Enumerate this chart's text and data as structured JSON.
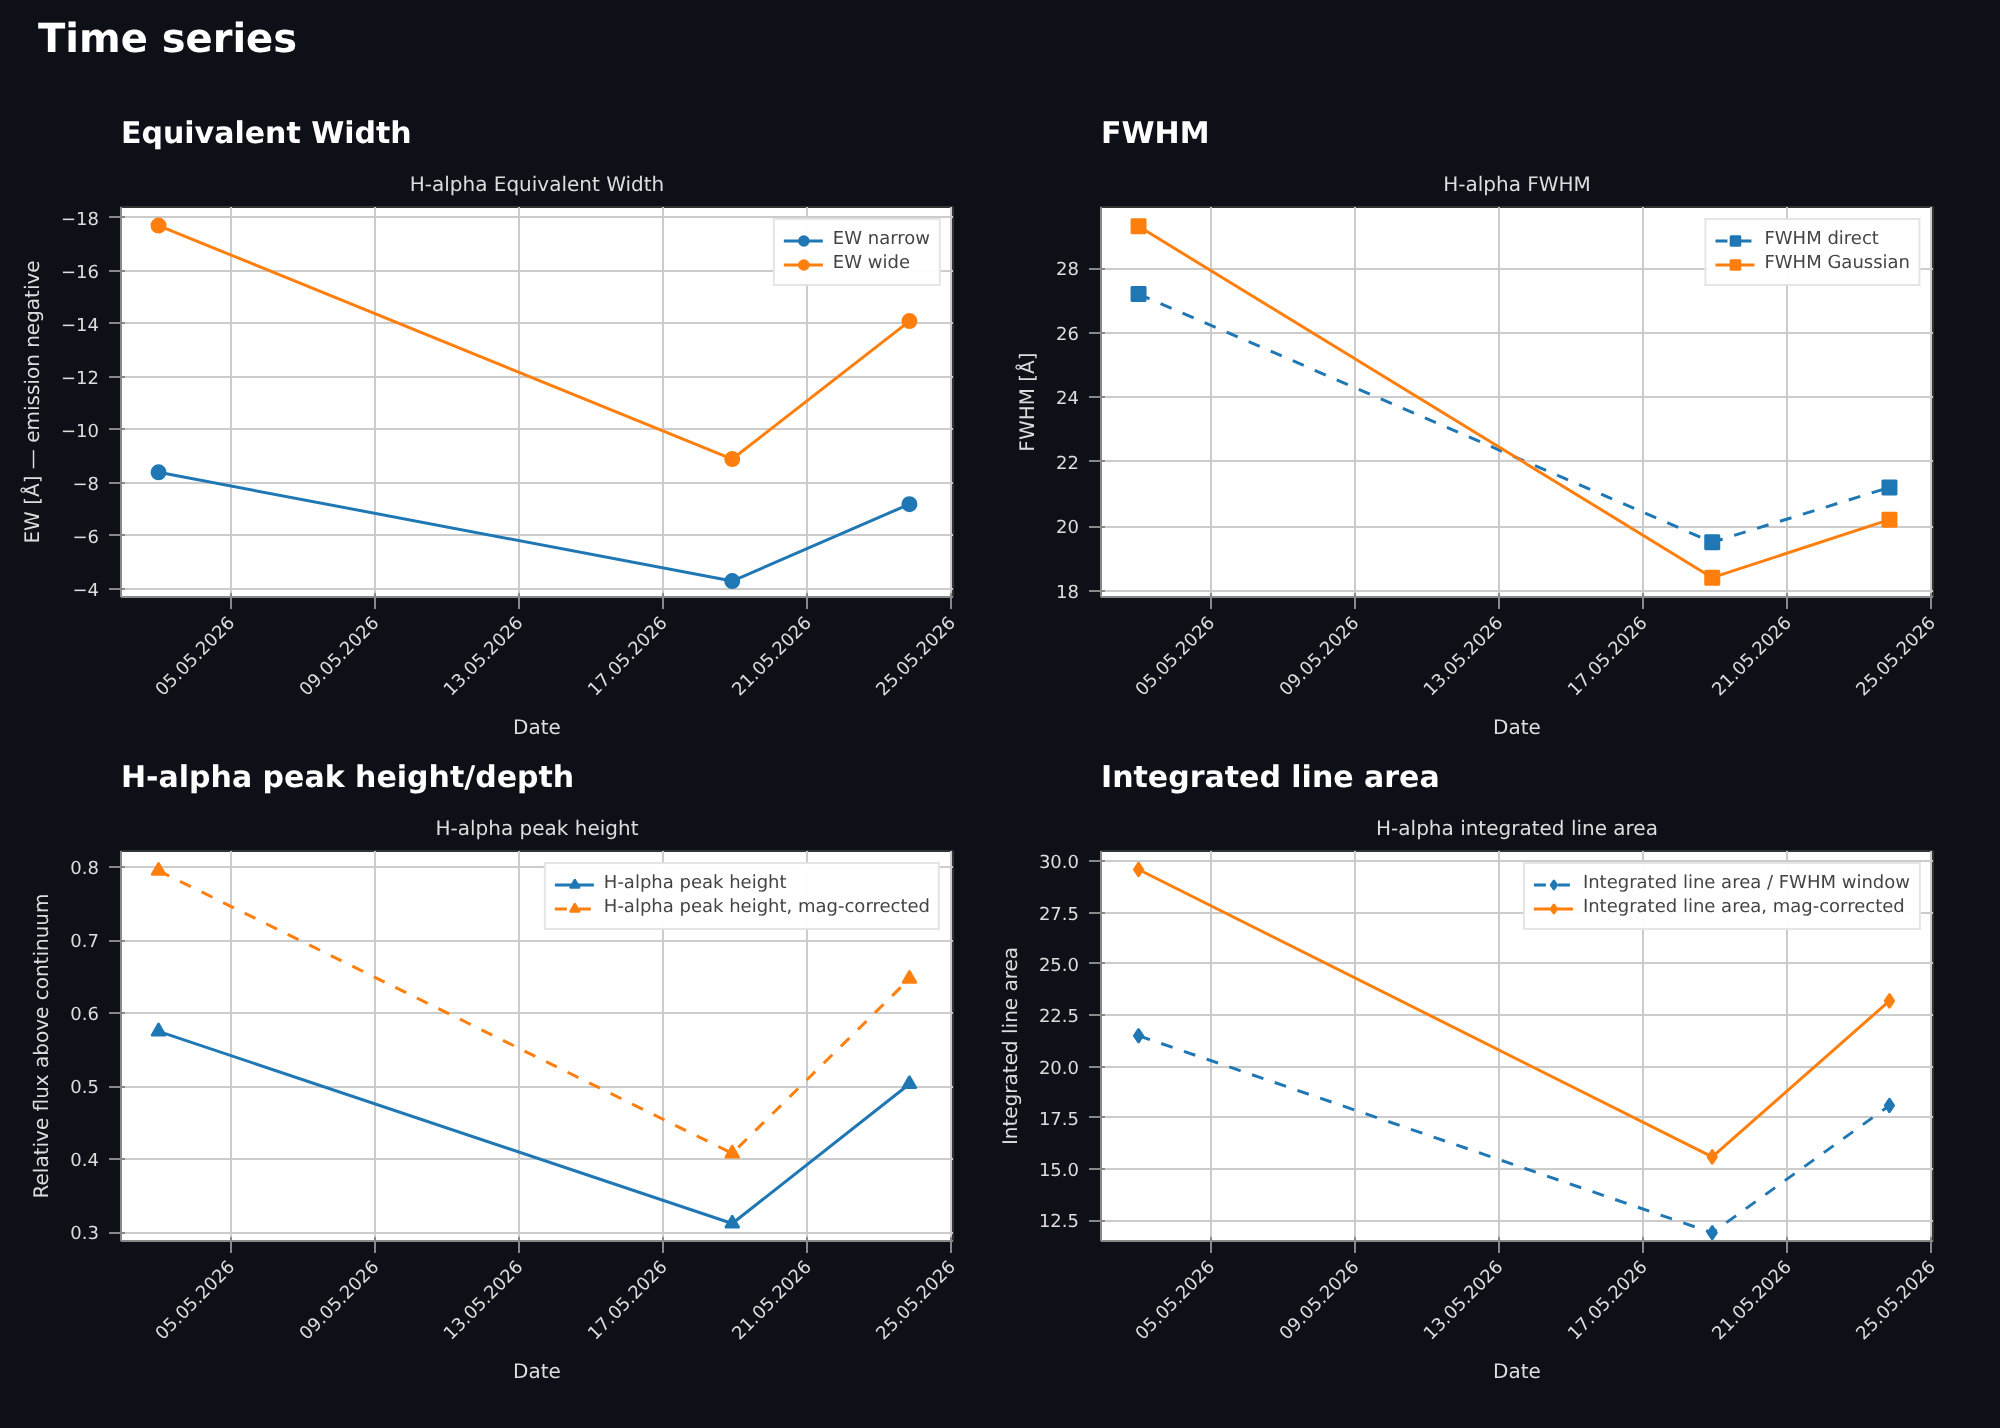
{
  "chart_data": [
    {
      "type": "other",
      "title": "Time series"
    },
    {
      "type": "line",
      "title": "Equivalent Width",
      "subtitle": "H-alpha Equivalent Width",
      "xlabel": "Date",
      "ylabel": "EW [Å] — emission negative",
      "marker": "circle",
      "grid": true,
      "legend": "top right",
      "x": [
        "2026-05-03T00:00",
        "2026-05-18T22:00",
        "2026-05-23T20:00"
      ],
      "series": [
        {
          "name": "EW narrow",
          "color": "#1f77b4",
          "line_style": "solid",
          "values": [
            -8.4,
            -4.3,
            -7.2
          ]
        },
        {
          "name": "EW wide",
          "color": "#ff7f0e",
          "line_style": "solid",
          "values": [
            -17.7,
            -8.9,
            -14.1
          ]
        }
      ],
      "xlim": [
        "2026-05-01T23:00",
        "2026-05-25T01:00"
      ],
      "ylim": [
        -3.7,
        -18.4
      ],
      "xticks": [
        {
          "value": "2026-05-05",
          "label": "05.05.2026"
        },
        {
          "value": "2026-05-09",
          "label": "09.05.2026"
        },
        {
          "value": "2026-05-13",
          "label": "13.05.2026"
        },
        {
          "value": "2026-05-17",
          "label": "17.05.2026"
        },
        {
          "value": "2026-05-21",
          "label": "21.05.2026"
        },
        {
          "value": "2026-05-25",
          "label": "25.05.2026"
        }
      ],
      "yticks": [
        {
          "value": -18,
          "label": "−18"
        },
        {
          "value": -16,
          "label": "−16"
        },
        {
          "value": -14,
          "label": "−14"
        },
        {
          "value": -12,
          "label": "−12"
        },
        {
          "value": -10,
          "label": "−10"
        },
        {
          "value": -8,
          "label": "−8"
        },
        {
          "value": -6,
          "label": "−6"
        },
        {
          "value": -4,
          "label": "−4"
        }
      ]
    },
    {
      "type": "line",
      "title": "FWHM",
      "subtitle": "H-alpha FWHM",
      "xlabel": "Date",
      "ylabel": "FWHM [Å]",
      "marker": "square",
      "grid": true,
      "legend": "top right",
      "x": [
        "2026-05-03T00:00",
        "2026-05-18T22:00",
        "2026-05-23T20:00"
      ],
      "series": [
        {
          "name": "FWHM direct",
          "color": "#1f77b4",
          "line_style": "dashed",
          "values": [
            27.2,
            19.5,
            21.2
          ]
        },
        {
          "name": "FWHM Gaussian",
          "color": "#ff7f0e",
          "line_style": "solid",
          "values": [
            29.3,
            18.4,
            20.2
          ]
        }
      ],
      "xlim": [
        "2026-05-01T23:00",
        "2026-05-25T01:00"
      ],
      "ylim": [
        17.8,
        29.9
      ],
      "xticks": [
        {
          "value": "2026-05-05",
          "label": "05.05.2026"
        },
        {
          "value": "2026-05-09",
          "label": "09.05.2026"
        },
        {
          "value": "2026-05-13",
          "label": "13.05.2026"
        },
        {
          "value": "2026-05-17",
          "label": "17.05.2026"
        },
        {
          "value": "2026-05-21",
          "label": "21.05.2026"
        },
        {
          "value": "2026-05-25",
          "label": "25.05.2026"
        }
      ],
      "yticks": [
        18,
        20,
        22,
        24,
        26,
        28
      ]
    },
    {
      "type": "line",
      "title": "H-alpha peak height/depth",
      "subtitle": "H-alpha peak height",
      "xlabel": "Date",
      "ylabel": "Relative flux above continuum",
      "marker": "triangle",
      "grid": true,
      "legend": "top right",
      "x": [
        "2026-05-03T00:00",
        "2026-05-18T22:00",
        "2026-05-23T20:00"
      ],
      "series": [
        {
          "name": "H-alpha peak height",
          "color": "#1f77b4",
          "line_style": "solid",
          "values": [
            0.575,
            0.312,
            0.503
          ]
        },
        {
          "name": "H-alpha peak height, mag-corrected",
          "color": "#ff7f0e",
          "line_style": "dashed",
          "values": [
            0.795,
            0.408,
            0.647
          ]
        }
      ],
      "xlim": [
        "2026-05-01T23:00",
        "2026-05-25T01:00"
      ],
      "ylim": [
        0.288,
        0.822
      ],
      "xticks": [
        {
          "value": "2026-05-05",
          "label": "05.05.2026"
        },
        {
          "value": "2026-05-09",
          "label": "09.05.2026"
        },
        {
          "value": "2026-05-13",
          "label": "13.05.2026"
        },
        {
          "value": "2026-05-17",
          "label": "17.05.2026"
        },
        {
          "value": "2026-05-21",
          "label": "21.05.2026"
        },
        {
          "value": "2026-05-25",
          "label": "25.05.2026"
        }
      ],
      "yticks": [
        0.3,
        0.4,
        0.5,
        0.6,
        0.7,
        0.8
      ]
    },
    {
      "type": "line",
      "title": "Integrated line area",
      "subtitle": "H-alpha integrated line area",
      "xlabel": "Date",
      "ylabel": "Integrated line area",
      "marker": "diamond",
      "grid": true,
      "legend": "top right",
      "x": [
        "2026-05-03T00:00",
        "2026-05-18T22:00",
        "2026-05-23T20:00"
      ],
      "series": [
        {
          "name": "Integrated line area / FWHM window",
          "color": "#1f77b4",
          "line_style": "dashed",
          "values": [
            21.5,
            11.9,
            18.1
          ]
        },
        {
          "name": "Integrated line area, mag-corrected",
          "color": "#ff7f0e",
          "line_style": "solid",
          "values": [
            29.6,
            15.6,
            23.2
          ]
        }
      ],
      "xlim": [
        "2026-05-01T23:00",
        "2026-05-25T01:00"
      ],
      "ylim": [
        11.5,
        30.5
      ],
      "xticks": [
        {
          "value": "2026-05-05",
          "label": "05.05.2026"
        },
        {
          "value": "2026-05-09",
          "label": "09.05.2026"
        },
        {
          "value": "2026-05-13",
          "label": "13.05.2026"
        },
        {
          "value": "2026-05-17",
          "label": "17.05.2026"
        },
        {
          "value": "2026-05-21",
          "label": "21.05.2026"
        },
        {
          "value": "2026-05-25",
          "label": "25.05.2026"
        }
      ],
      "yticks": [
        {
          "value": 12.5,
          "label": "12.5"
        },
        {
          "value": 15,
          "label": "15.0"
        },
        {
          "value": 17.5,
          "label": "17.5"
        },
        {
          "value": 20,
          "label": "20.0"
        },
        {
          "value": 22.5,
          "label": "22.5"
        },
        {
          "value": 25,
          "label": "25.0"
        },
        {
          "value": 27.5,
          "label": "27.5"
        },
        {
          "value": 30,
          "label": "30.0"
        }
      ]
    }
  ]
}
